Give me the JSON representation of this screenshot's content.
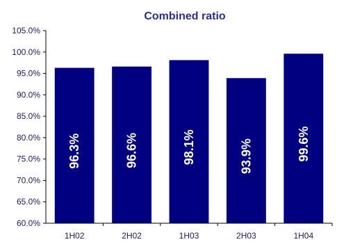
{
  "chart_data": {
    "type": "bar",
    "title": "Combined ratio",
    "xlabel": "",
    "ylabel": "",
    "categories": [
      "1H02",
      "2H02",
      "1H03",
      "2H03",
      "1H04"
    ],
    "values": [
      96.3,
      96.6,
      98.1,
      93.9,
      99.6
    ],
    "data_labels": [
      "96.3%",
      "96.6%",
      "98.1%",
      "93.9%",
      "99.6%"
    ],
    "ylim": [
      60,
      105
    ],
    "y_ticks": [
      60,
      65,
      70,
      75,
      80,
      85,
      90,
      95,
      100,
      105
    ],
    "y_tick_labels": [
      "60.0%",
      "65.0%",
      "70.0%",
      "75.0%",
      "80.0%",
      "85.0%",
      "90.0%",
      "95.0%",
      "100.0%",
      "105.0%"
    ],
    "grid": false,
    "legend": "none",
    "colors": {
      "bar": "#000080",
      "title": "#2e2e8c",
      "axis_text": "#1a1a6e",
      "bar_label": "#ffffff"
    }
  }
}
